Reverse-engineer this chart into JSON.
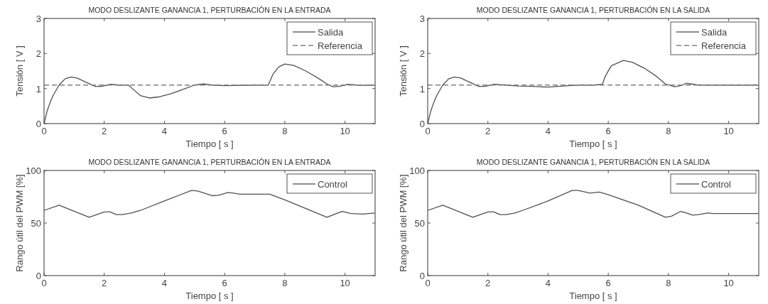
{
  "chart_data": [
    {
      "type": "line",
      "title": "MODO DESLIZANTE GANANCIA 1, PERTURBACIÓN EN LA ENTRADA",
      "xlabel": "Tiempo [ s ]",
      "ylabel": "Tensión [ V ]",
      "xlim": [
        0,
        11
      ],
      "ylim": [
        0,
        3
      ],
      "xticks": [
        0,
        2,
        4,
        6,
        8,
        10
      ],
      "yticks": [
        0,
        1,
        2,
        3
      ],
      "legend": "top right",
      "series": [
        {
          "name": "Salida",
          "color": "#505050",
          "line_style": "solid",
          "x": [
            0,
            0.1,
            0.2,
            0.3,
            0.5,
            0.7,
            0.9,
            1.1,
            1.4,
            1.7,
            1.9,
            2.2,
            2.5,
            2.8,
            3.0,
            3.2,
            3.5,
            3.8,
            4.2,
            4.6,
            5.0,
            5.3,
            5.6,
            6,
            7,
            7.45,
            7.6,
            7.8,
            8.0,
            8.3,
            8.7,
            9.1,
            9.4,
            9.6,
            9.8,
            10.1,
            10.5,
            11
          ],
          "values": [
            0,
            0.35,
            0.6,
            0.8,
            1.1,
            1.28,
            1.33,
            1.3,
            1.18,
            1.06,
            1.06,
            1.12,
            1.1,
            1.1,
            0.95,
            0.8,
            0.73,
            0.76,
            0.85,
            0.97,
            1.1,
            1.13,
            1.1,
            1.08,
            1.1,
            1.1,
            1.4,
            1.62,
            1.7,
            1.66,
            1.5,
            1.3,
            1.13,
            1.05,
            1.06,
            1.12,
            1.09,
            1.1
          ]
        },
        {
          "name": "Referencia",
          "color": "#808080",
          "line_style": "dashed",
          "x": [
            0,
            11
          ],
          "values": [
            1.1,
            1.1
          ]
        }
      ]
    },
    {
      "type": "line",
      "title": "MODO DESLIZANTE GANANCIA 1, PERTURBACIÓN EN LA SALIDA",
      "xlabel": "Tiempo [ s ]",
      "ylabel": "Tensión [ V ]",
      "xlim": [
        0,
        11
      ],
      "ylim": [
        0,
        3
      ],
      "xticks": [
        0,
        2,
        4,
        6,
        8,
        10
      ],
      "yticks": [
        0,
        1,
        2,
        3
      ],
      "legend": "top right",
      "series": [
        {
          "name": "Salida",
          "color": "#505050",
          "line_style": "solid",
          "x": [
            0,
            0.1,
            0.2,
            0.3,
            0.5,
            0.7,
            0.9,
            1.1,
            1.4,
            1.7,
            1.9,
            2.2,
            2.6,
            3,
            3.5,
            4,
            4.5,
            5,
            5.5,
            5.8,
            5.9,
            6.1,
            6.5,
            6.8,
            7.2,
            7.6,
            7.9,
            8.2,
            8.4,
            8.6,
            9,
            10,
            11
          ],
          "values": [
            0,
            0.35,
            0.6,
            0.8,
            1.1,
            1.28,
            1.33,
            1.3,
            1.18,
            1.06,
            1.06,
            1.12,
            1.1,
            1.07,
            1.06,
            1.04,
            1.07,
            1.1,
            1.1,
            1.12,
            1.35,
            1.65,
            1.8,
            1.75,
            1.58,
            1.35,
            1.13,
            1.05,
            1.08,
            1.15,
            1.1,
            1.1,
            1.1
          ]
        },
        {
          "name": "Referencia",
          "color": "#808080",
          "line_style": "dashed",
          "x": [
            0,
            11
          ],
          "values": [
            1.1,
            1.1
          ]
        }
      ]
    },
    {
      "type": "line",
      "title": "MODO DESLIZANTE GANANCIA 1, PERTURBACIÓN EN LA ENTRADA",
      "xlabel": "Tiempo [ s ]",
      "ylabel": "Rango útil del PWM [%]",
      "xlim": [
        0,
        11
      ],
      "ylim": [
        0,
        100
      ],
      "xticks": [
        0,
        2,
        4,
        6,
        8,
        10
      ],
      "yticks": [
        0,
        50,
        100
      ],
      "legend": "top right",
      "series": [
        {
          "name": "Control",
          "color": "#505050",
          "line_style": "solid",
          "x": [
            0,
            0.5,
            1.5,
            2,
            2.2,
            2.4,
            2.6,
            2.9,
            3.2,
            4,
            4.9,
            5.1,
            5.6,
            5.8,
            6.1,
            6.3,
            6.5,
            7.5,
            8,
            9.4,
            9.9,
            10.2,
            10.6,
            11
          ],
          "values": [
            62,
            67,
            55.5,
            60.5,
            60.5,
            58,
            58,
            59.5,
            62,
            71,
            81,
            80.5,
            76,
            76.5,
            79,
            78.5,
            77.5,
            77.5,
            72,
            55.5,
            61,
            59,
            58.5,
            59.5
          ]
        }
      ]
    },
    {
      "type": "line",
      "title": "MODO DESLIZANTE GANANCIA 1, PERTURBACIÓN EN LA SALIDA",
      "xlabel": "Tiempo [ s ]",
      "ylabel": "Rango útil del PWM [%]",
      "xlim": [
        0,
        11
      ],
      "ylim": [
        0,
        100
      ],
      "xticks": [
        0,
        2,
        4,
        6,
        8,
        10
      ],
      "yticks": [
        0,
        50,
        100
      ],
      "legend": "top right",
      "series": [
        {
          "name": "Control",
          "color": "#505050",
          "line_style": "solid",
          "x": [
            0,
            0.5,
            1.5,
            2,
            2.2,
            2.4,
            2.6,
            2.9,
            3.2,
            4,
            4.8,
            5.0,
            5.4,
            5.7,
            6,
            7,
            7.9,
            8.1,
            8.4,
            8.6,
            8.8,
            9,
            9.3,
            9.5,
            10,
            11
          ],
          "values": [
            62,
            67,
            55.5,
            60.5,
            60.5,
            58,
            58,
            59.5,
            62.5,
            71,
            81,
            81,
            78.5,
            79.5,
            77,
            67,
            55.5,
            56.5,
            61,
            59.5,
            57.5,
            58,
            59.5,
            59,
            59,
            59
          ]
        }
      ]
    }
  ]
}
